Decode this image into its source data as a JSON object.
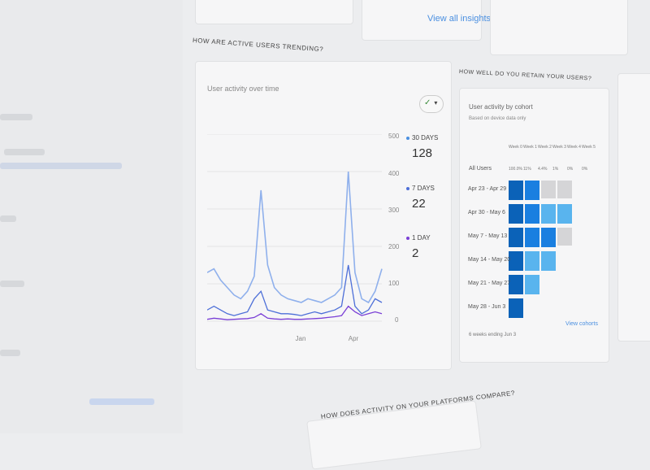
{
  "top": {
    "view_insights": "View all insights",
    "arrow": "→"
  },
  "trend_section": {
    "heading": "HOW ARE ACTIVE USERS TRENDING?",
    "card_title": "User activity over time",
    "filter_icon": "check-circle-icon",
    "dropdown": "▾"
  },
  "retention_section": {
    "heading": "HOW WELL DO YOU RETAIN YOUR USERS?",
    "card_title": "User activity by cohort",
    "subtitle": "Based on device data only",
    "all_users": "All Users",
    "columns": [
      "Week 0",
      "Week 1",
      "Week 2",
      "Week 3",
      "Week 4",
      "Week 5"
    ],
    "all_users_values": [
      "100.0%",
      "11%",
      "4.4%",
      "1%",
      "0%",
      "0%"
    ],
    "rows": [
      {
        "label": "Apr 23 - Apr 29",
        "levels": [
          1.0,
          0.8,
          0,
          0
        ]
      },
      {
        "label": "Apr 30 - May 6",
        "levels": [
          1.0,
          0.8,
          0.5,
          0.5
        ]
      },
      {
        "label": "May 7 - May 13",
        "levels": [
          1.0,
          0.8,
          0.8,
          0
        ]
      },
      {
        "label": "May 14 - May 20",
        "levels": [
          1.0,
          0.5,
          0.5
        ]
      },
      {
        "label": "May 21 - May 27",
        "levels": [
          1.0,
          0.35
        ]
      },
      {
        "label": "May 28 - Jun 3",
        "levels": [
          1.0
        ]
      }
    ],
    "footer": "6 weeks ending Jun 3",
    "view_link": "View cohorts"
  },
  "platform_section": {
    "heading": "HOW DOES ACTIVITY ON YOUR PLATFORMS COMPARE?"
  },
  "colors": {
    "accent": "#4a8fe0",
    "cohort_dark": "#0b62b8",
    "cohort_mid": "#1a7fe0",
    "cohort_light": "#59b4ee",
    "empty": "#d5d5d7",
    "line_30": "#8fb0ec",
    "line_7": "#4d6fd8",
    "line_1": "#7a3fd6"
  },
  "chart_data": {
    "type": "line",
    "ylim": [
      0,
      500
    ],
    "yticks": [
      "500",
      "400",
      "300",
      "200",
      "100",
      "0"
    ],
    "xticks": [
      "Jan",
      "Apr"
    ],
    "legend_placement": "right",
    "series": [
      {
        "name": "30 DAYS",
        "total": "128",
        "values": [
          130,
          140,
          110,
          90,
          70,
          60,
          80,
          120,
          350,
          150,
          90,
          70,
          60,
          55,
          50,
          60,
          55,
          50,
          60,
          70,
          90,
          400,
          130,
          60,
          50,
          80,
          140
        ]
      },
      {
        "name": "7 DAYS",
        "total": "22",
        "values": [
          30,
          40,
          30,
          20,
          15,
          20,
          25,
          60,
          80,
          30,
          25,
          20,
          20,
          18,
          15,
          20,
          25,
          20,
          25,
          30,
          40,
          150,
          40,
          20,
          30,
          60,
          50
        ]
      },
      {
        "name": "1 DAY",
        "total": "2",
        "values": [
          5,
          8,
          6,
          4,
          5,
          6,
          7,
          10,
          20,
          8,
          6,
          5,
          6,
          5,
          5,
          6,
          7,
          8,
          10,
          12,
          15,
          40,
          25,
          15,
          20,
          25,
          20
        ]
      }
    ]
  }
}
